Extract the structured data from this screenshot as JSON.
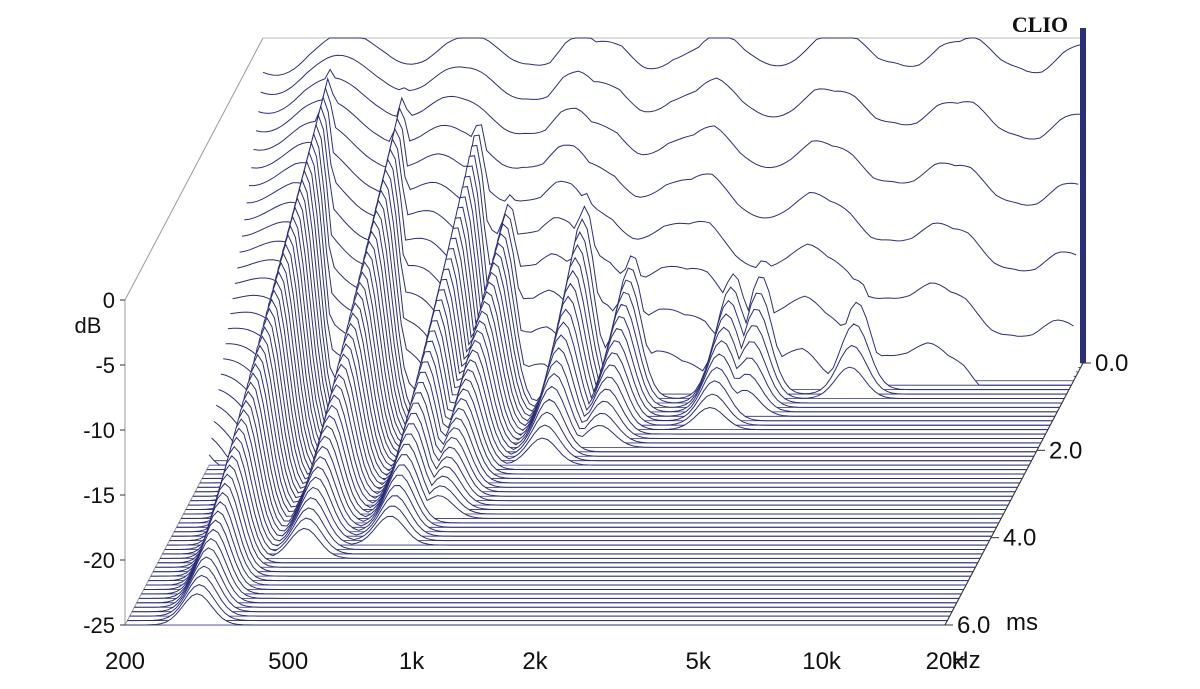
{
  "chart_data": {
    "type": "waterfall-3d",
    "brand": "CLIO",
    "y_axis": {
      "label": "dB",
      "range": [
        -25,
        0
      ],
      "ticks": [
        {
          "value": 0,
          "label": "0"
        },
        {
          "value": -5,
          "label": "-5"
        },
        {
          "value": -10,
          "label": "-10"
        },
        {
          "value": -15,
          "label": "-15"
        },
        {
          "value": -20,
          "label": "-20"
        },
        {
          "value": -25,
          "label": "-25"
        }
      ]
    },
    "x_axis": {
      "scale": "log",
      "range_hz": [
        200,
        20000
      ],
      "unit": "Hz",
      "ticks": [
        {
          "value": 200,
          "label": "200"
        },
        {
          "value": 500,
          "label": "500"
        },
        {
          "value": 1000,
          "label": "1k"
        },
        {
          "value": 2000,
          "label": "2k"
        },
        {
          "value": 5000,
          "label": "5k"
        },
        {
          "value": 10000,
          "label": "10k"
        },
        {
          "value": 20000,
          "label": "20k"
        }
      ]
    },
    "z_axis": {
      "unit": "ms",
      "range_ms": [
        0,
        6
      ],
      "ticks": [
        {
          "value": 0,
          "label": "0.0"
        },
        {
          "value": 2,
          "label": "2.0"
        },
        {
          "value": 4,
          "label": "4.0"
        },
        {
          "value": 6,
          "label": "6.0"
        }
      ]
    },
    "slices": 60,
    "line_color": "#2b2f7a",
    "background": "#ffffff",
    "initial_response": {
      "freq_hz": [
        200,
        230,
        260,
        300,
        350,
        400,
        450,
        500,
        560,
        630,
        700,
        800,
        900,
        1000,
        1100,
        1200,
        1300,
        1500,
        1700,
        2000,
        2300,
        2600,
        3000,
        3500,
        4000,
        4500,
        5000,
        5600,
        6300,
        7000,
        8000,
        9000,
        10000,
        11000,
        12500,
        14000,
        16000,
        18000,
        20000
      ],
      "level_db": [
        -2,
        -1.5,
        -1,
        -0.8,
        -0.7,
        -0.6,
        -0.8,
        -1,
        -0.9,
        -1.1,
        -0.9,
        -1,
        -0.8,
        -1.2,
        -0.5,
        -0.7,
        -1.5,
        -0.8,
        -1.3,
        -0.9,
        -1.4,
        -0.6,
        -1.2,
        -1,
        -0.8,
        -0.4,
        -1.1,
        -0.9,
        -1.3,
        -0.8,
        -1.2,
        -0.9,
        -1.4,
        -1,
        -1.5,
        -1.2,
        -1.7,
        -1.3,
        -1.6
      ]
    },
    "decay_resonances": [
      {
        "freq_hz": 300,
        "level_db": -1,
        "decay_ms": 6.0
      },
      {
        "freq_hz": 450,
        "level_db": -3,
        "decay_ms": 4.5
      },
      {
        "freq_hz": 700,
        "level_db": -4,
        "decay_ms": 4.2
      },
      {
        "freq_hz": 850,
        "level_db": -9,
        "decay_ms": 3.6
      },
      {
        "freq_hz": 1300,
        "level_db": -8,
        "decay_ms": 2.4
      },
      {
        "freq_hz": 1700,
        "level_db": -12,
        "decay_ms": 2.0
      },
      {
        "freq_hz": 3000,
        "level_db": -13,
        "decay_ms": 1.6
      },
      {
        "freq_hz": 3500,
        "level_db": -12,
        "decay_ms": 1.3
      },
      {
        "freq_hz": 6000,
        "level_db": -12,
        "decay_ms": 0.9
      },
      {
        "freq_hz": 9000,
        "level_db": -14,
        "decay_ms": 0.6
      },
      {
        "freq_hz": 13000,
        "level_db": -17,
        "decay_ms": 0.3
      }
    ]
  }
}
